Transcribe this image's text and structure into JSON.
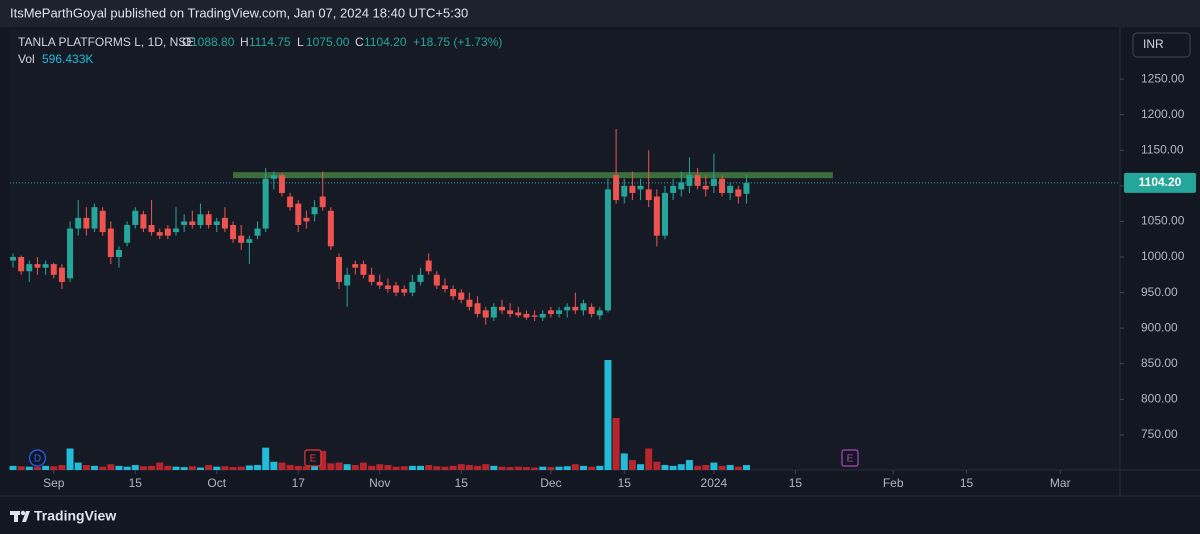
{
  "publisher": "ItsMeParthGoyal published on TradingView.com, Jan 07, 2024 18:40 UTC+5:30",
  "brand": "TradingView",
  "chart_data": {
    "type": "candlestick",
    "title": "TANLA PLATFORMS L, 1D, NSE",
    "legend_items": [
      {
        "letter": "O",
        "text": "1088.80"
      },
      {
        "letter": "H",
        "text": "1114.75"
      },
      {
        "letter": "L",
        "text": "1075.00"
      },
      {
        "letter": "C",
        "text": "1104.20"
      }
    ],
    "change": "+18.75 (+1.73%)",
    "volume_label": "Vol",
    "volume_text": "596.433K",
    "currency": "INR",
    "last_price_label": "1104.20",
    "up_color": "#26a69a",
    "down_color": "#ef5350",
    "volume_up_color": "#22bcd8",
    "volume_down_color": "#b8252c",
    "open": [
      995,
      1000,
      980,
      990,
      985,
      990,
      985,
      970,
      1040,
      1055,
      1040,
      1065,
      1040,
      1000,
      1020,
      1045,
      1060,
      1045,
      1035,
      1040,
      1035,
      1045,
      1050,
      1045,
      1060,
      1045,
      1055,
      1045,
      1030,
      1020,
      1030,
      1040,
      1110,
      1115,
      1085,
      1075,
      1055,
      1060,
      1085,
      1065,
      1000,
      960,
      990,
      990,
      975,
      965,
      960,
      960,
      955,
      950,
      965,
      995,
      975,
      960,
      955,
      950,
      940,
      935,
      925,
      915,
      930,
      925,
      922,
      920,
      918,
      915,
      925,
      920,
      925,
      930,
      925,
      930,
      918,
      925,
      1115,
      1085,
      1100,
      1095,
      1095,
      1085,
      1030,
      1090,
      1095,
      1100,
      1115,
      1100,
      1100,
      1110,
      1090,
      1095,
      1088.8
    ],
    "high": [
      1005,
      1002,
      995,
      1000,
      995,
      992,
      990,
      1050,
      1080,
      1070,
      1075,
      1070,
      1050,
      1015,
      1050,
      1070,
      1065,
      1080,
      1040,
      1045,
      1070,
      1060,
      1065,
      1075,
      1065,
      1055,
      1070,
      1050,
      1045,
      1030,
      1050,
      1125,
      1120,
      1118,
      1090,
      1080,
      1065,
      1080,
      1120,
      1070,
      1005,
      985,
      995,
      995,
      985,
      975,
      970,
      965,
      960,
      975,
      985,
      1005,
      980,
      970,
      960,
      955,
      950,
      945,
      930,
      935,
      940,
      935,
      930,
      925,
      925,
      925,
      930,
      930,
      935,
      950,
      940,
      935,
      930,
      1110,
      1180,
      1110,
      1120,
      1110,
      1150,
      1095,
      1100,
      1110,
      1120,
      1140,
      1125,
      1115,
      1145,
      1115,
      1105,
      1100,
      1114.75
    ],
    "low": [
      985,
      975,
      965,
      975,
      975,
      970,
      955,
      965,
      1030,
      1030,
      1035,
      1030,
      990,
      985,
      1015,
      1040,
      1035,
      1030,
      1025,
      1025,
      1030,
      1035,
      1040,
      1040,
      1040,
      1035,
      1035,
      1020,
      1010,
      990,
      1025,
      1035,
      1095,
      1085,
      1065,
      1035,
      1040,
      1050,
      1065,
      1010,
      955,
      930,
      975,
      970,
      960,
      955,
      950,
      945,
      945,
      945,
      960,
      975,
      955,
      950,
      940,
      935,
      925,
      915,
      905,
      910,
      920,
      915,
      915,
      912,
      910,
      910,
      915,
      915,
      915,
      920,
      918,
      915,
      912,
      922,
      1075,
      1075,
      1080,
      1080,
      1070,
      1015,
      1025,
      1080,
      1085,
      1090,
      1095,
      1085,
      1090,
      1085,
      1080,
      1075,
      1075
    ],
    "close": [
      1000,
      980,
      990,
      985,
      990,
      975,
      965,
      1040,
      1055,
      1040,
      1070,
      1035,
      1000,
      1010,
      1045,
      1065,
      1040,
      1035,
      1030,
      1030,
      1040,
      1050,
      1045,
      1060,
      1045,
      1050,
      1040,
      1025,
      1020,
      1025,
      1040,
      1110,
      1115,
      1090,
      1070,
      1045,
      1050,
      1070,
      1070,
      1015,
      965,
      975,
      985,
      975,
      965,
      960,
      955,
      950,
      950,
      965,
      975,
      980,
      960,
      955,
      945,
      940,
      930,
      920,
      915,
      930,
      925,
      920,
      918,
      915,
      916,
      920,
      920,
      925,
      930,
      925,
      935,
      920,
      925,
      1095,
      1080,
      1100,
      1090,
      1100,
      1080,
      1030,
      1090,
      1100,
      1105,
      1115,
      1100,
      1095,
      1110,
      1090,
      1100,
      1085,
      1104.2
    ],
    "volume": [
      500000,
      450000,
      400000,
      350000,
      500000,
      450000,
      600000,
      2600000,
      900000,
      600000,
      500000,
      400000,
      700000,
      500000,
      400000,
      600000,
      450000,
      500000,
      900000,
      500000,
      400000,
      350000,
      450000,
      300000,
      600000,
      400000,
      450000,
      350000,
      400000,
      550000,
      600000,
      2700000,
      1000000,
      900000,
      600000,
      500000,
      450000,
      500000,
      2300000,
      800000,
      900000,
      700000,
      600000,
      900000,
      500000,
      700000,
      600000,
      400000,
      450000,
      500000,
      500000,
      600000,
      450000,
      400000,
      500000,
      700000,
      600000,
      500000,
      700000,
      500000,
      400000,
      350000,
      400000,
      350000,
      300000,
      400000,
      350000,
      400000,
      450000,
      700000,
      500000,
      400000,
      500000,
      13300000,
      6300000,
      2000000,
      1200000,
      700000,
      2600000,
      1000000,
      600000,
      500000,
      700000,
      1200000,
      500000,
      600000,
      900000,
      500000,
      600000,
      400000,
      596433
    ],
    "xlim": [
      -0.37,
      135.83
    ],
    "xticks": [
      {
        "value": 5,
        "label": "Sep"
      },
      {
        "value": 15,
        "label": "15"
      },
      {
        "value": 25,
        "label": "Oct"
      },
      {
        "value": 35,
        "label": "17"
      },
      {
        "value": 45,
        "label": "Nov"
      },
      {
        "value": 55,
        "label": "15"
      },
      {
        "value": 66,
        "label": "Dec"
      },
      {
        "value": 75,
        "label": "15"
      },
      {
        "value": 86,
        "label": "2024"
      },
      {
        "value": 96,
        "label": "15"
      },
      {
        "value": 108,
        "label": "Feb"
      },
      {
        "value": 117,
        "label": "15"
      },
      {
        "value": 128.5,
        "label": "Mar"
      }
    ],
    "ylim": [
      700.7,
      1320.4
    ],
    "yticks": [
      {
        "value": 750,
        "label": "750.00"
      },
      {
        "value": 800,
        "label": "800.00"
      },
      {
        "value": 850,
        "label": "850.00"
      },
      {
        "value": 900,
        "label": "900.00"
      },
      {
        "value": 950,
        "label": "950.00"
      },
      {
        "value": 1000,
        "label": "1000.00"
      },
      {
        "value": 1050,
        "label": "1050.00"
      },
      {
        "value": 1100,
        "label": "1100.00"
      },
      {
        "value": 1150,
        "label": "1150.00"
      },
      {
        "value": 1200,
        "label": "1200.00"
      },
      {
        "value": 1250,
        "label": "1250.00"
      }
    ],
    "resistance": {
      "price": 1115,
      "x": [
        27,
        100.6
      ],
      "color": "#3b6e3a"
    },
    "events": [
      {
        "label": "D",
        "x": 3,
        "color": "#2962ff",
        "shape": "circle"
      },
      {
        "label": "E",
        "x": 36.8,
        "color": "#e53935",
        "shape": "box"
      },
      {
        "label": "E",
        "x": 102.7,
        "color": "#ab47bc",
        "shape": "box"
      }
    ]
  }
}
